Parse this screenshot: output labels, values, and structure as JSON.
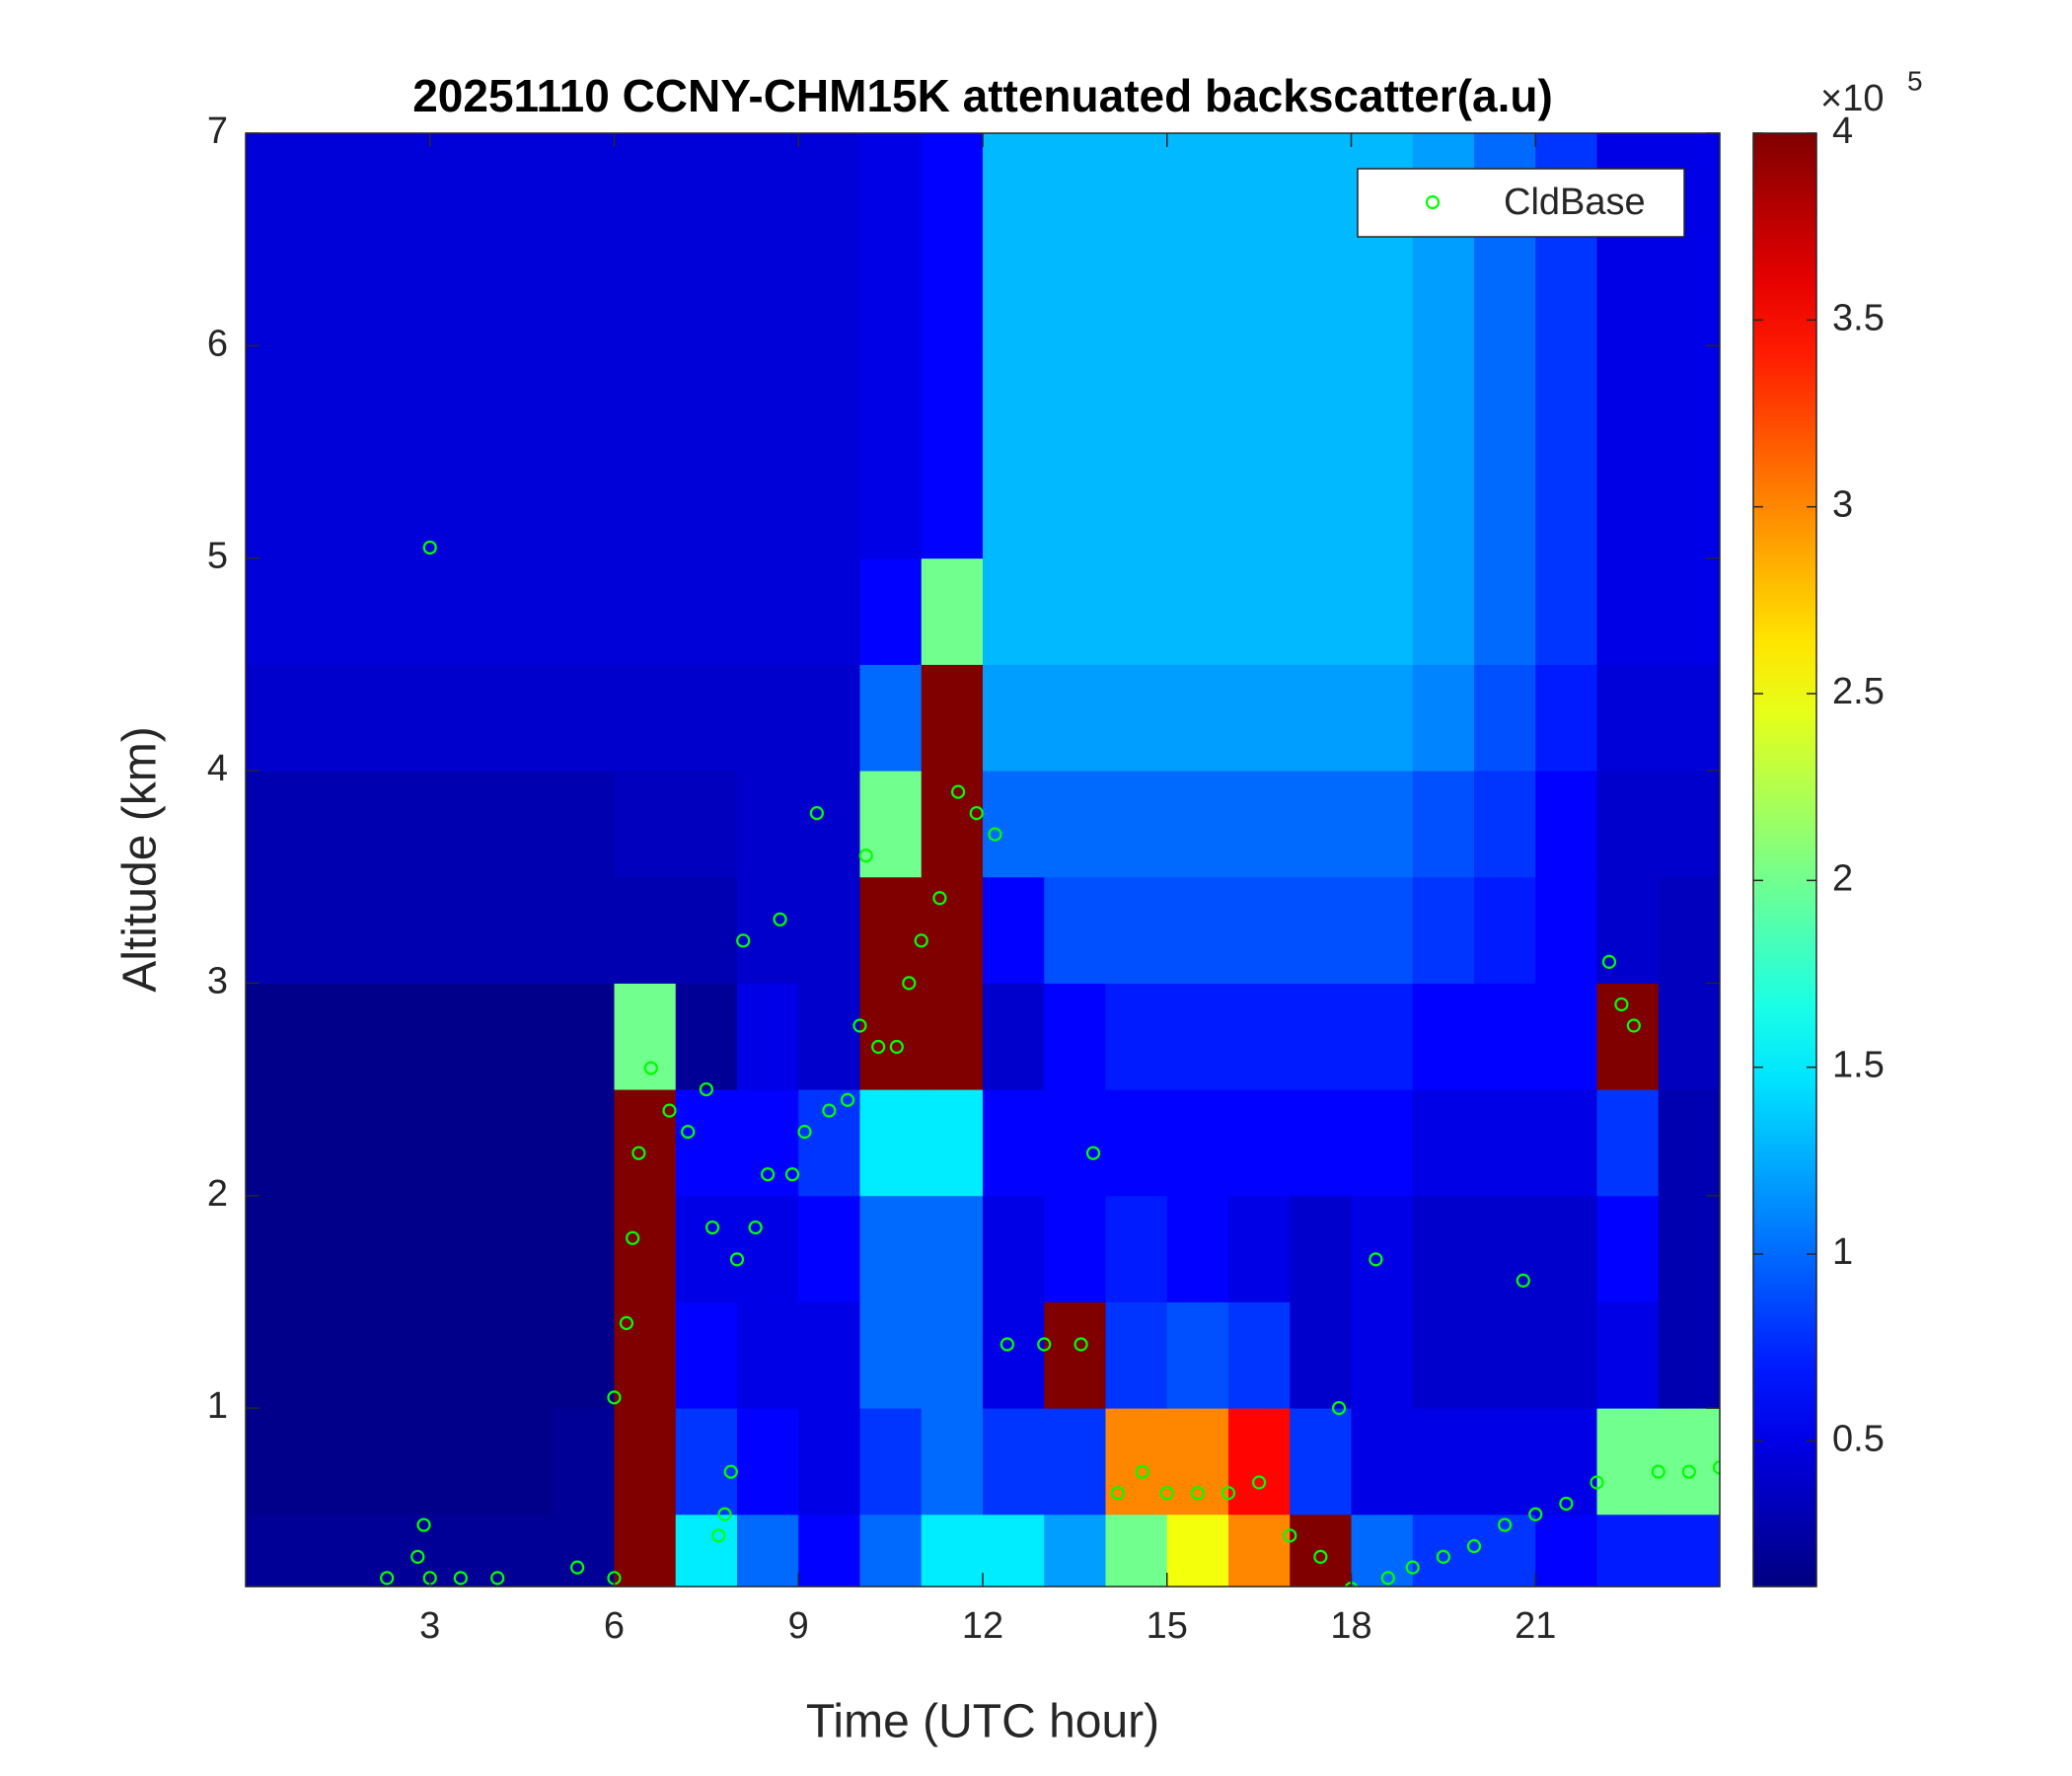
{
  "chart_data": {
    "type": "heatmap",
    "title": "20251110 CCNY-CHM15K attenuated backscatter(a.u)",
    "xlabel": "Time (UTC hour)",
    "ylabel": "Altitude (km)",
    "xlim": [
      0,
      24
    ],
    "ylim": [
      0.16,
      7
    ],
    "xticks": [
      3,
      6,
      9,
      12,
      15,
      18,
      21
    ],
    "yticks": [
      1,
      2,
      3,
      4,
      5,
      6,
      7
    ],
    "colormap": "jet",
    "clim": [
      0.11,
      4
    ],
    "cticks": [
      0.5,
      1,
      1.5,
      2,
      2.5,
      3,
      3.5,
      4
    ],
    "colorbar_label": "×10",
    "colorbar_exponent": "5",
    "legend_position": "upper right",
    "xbins": [
      0,
      1,
      2,
      3,
      4,
      5,
      6,
      7,
      8,
      9,
      10,
      11,
      12,
      13,
      14,
      15,
      16,
      17,
      18,
      19,
      20,
      21,
      22,
      23,
      24
    ],
    "ybins": [
      0,
      0.5,
      1,
      1.5,
      2,
      2.5,
      3,
      3.5,
      4,
      4.5,
      5,
      5.5,
      6,
      6.5,
      7
    ],
    "z": [
      [
        0.2,
        0.2,
        0.2,
        0.2,
        0.2,
        0.2,
        4,
        1.5,
        1,
        0.6,
        1,
        1.5,
        1.5,
        1.2,
        2,
        2.5,
        3,
        4,
        1,
        0.8,
        0.8,
        0.6,
        0.7,
        0.7
      ],
      [
        0.15,
        0.15,
        0.15,
        0.15,
        0.15,
        0.2,
        4,
        0.8,
        0.6,
        0.5,
        0.8,
        1,
        0.8,
        0.8,
        3,
        3,
        3.5,
        0.8,
        0.5,
        0.5,
        0.5,
        0.5,
        2,
        2
      ],
      [
        0.15,
        0.15,
        0.15,
        0.15,
        0.15,
        0.15,
        4,
        0.6,
        0.5,
        0.5,
        1,
        1,
        0.5,
        4,
        0.8,
        0.9,
        0.8,
        0.4,
        0.5,
        0.4,
        0.4,
        0.4,
        0.5,
        0.3
      ],
      [
        0.15,
        0.15,
        0.15,
        0.15,
        0.15,
        0.15,
        4,
        0.5,
        0.5,
        0.6,
        1,
        1,
        0.5,
        0.6,
        0.7,
        0.6,
        0.5,
        0.4,
        0.5,
        0.4,
        0.4,
        0.4,
        0.6,
        0.3
      ],
      [
        0.15,
        0.15,
        0.15,
        0.15,
        0.15,
        0.15,
        4,
        0.6,
        0.6,
        0.8,
        1.5,
        1.5,
        0.6,
        0.6,
        0.6,
        0.6,
        0.6,
        0.6,
        0.6,
        0.5,
        0.5,
        0.5,
        0.8,
        0.3
      ],
      [
        0.15,
        0.15,
        0.15,
        0.15,
        0.15,
        0.15,
        2,
        0.2,
        0.5,
        0.4,
        4,
        4,
        0.4,
        0.6,
        0.7,
        0.7,
        0.7,
        0.7,
        0.7,
        0.6,
        0.6,
        0.6,
        4,
        0.35
      ],
      [
        0.3,
        0.3,
        0.3,
        0.3,
        0.3,
        0.3,
        0.3,
        0.3,
        0.4,
        0.4,
        4,
        4,
        0.6,
        0.9,
        0.9,
        0.9,
        0.9,
        0.9,
        0.9,
        0.8,
        0.7,
        0.6,
        0.4,
        0.35
      ],
      [
        0.3,
        0.3,
        0.3,
        0.3,
        0.3,
        0.3,
        0.35,
        0.35,
        0.4,
        0.4,
        2,
        4,
        1,
        1,
        1,
        1,
        1,
        1,
        1,
        0.9,
        0.8,
        0.6,
        0.4,
        0.4
      ],
      [
        0.4,
        0.4,
        0.4,
        0.4,
        0.4,
        0.4,
        0.4,
        0.4,
        0.4,
        0.4,
        1,
        4,
        1.2,
        1.2,
        1.2,
        1.2,
        1.2,
        1.2,
        1.2,
        1.1,
        0.9,
        0.7,
        0.45,
        0.45
      ],
      [
        0.45,
        0.45,
        0.45,
        0.45,
        0.45,
        0.45,
        0.45,
        0.45,
        0.45,
        0.45,
        0.6,
        2,
        1.3,
        1.3,
        1.3,
        1.3,
        1.3,
        1.3,
        1.3,
        1.2,
        1,
        0.8,
        0.5,
        0.5
      ],
      [
        0.45,
        0.45,
        0.45,
        0.45,
        0.45,
        0.45,
        0.45,
        0.45,
        0.45,
        0.45,
        0.5,
        0.6,
        1.3,
        1.3,
        1.3,
        1.3,
        1.3,
        1.3,
        1.3,
        1.2,
        1,
        0.8,
        0.5,
        0.5
      ],
      [
        0.45,
        0.45,
        0.45,
        0.45,
        0.45,
        0.45,
        0.45,
        0.45,
        0.45,
        0.45,
        0.5,
        0.6,
        1.3,
        1.3,
        1.3,
        1.3,
        1.3,
        1.3,
        1.3,
        1.2,
        1,
        0.8,
        0.5,
        0.5
      ],
      [
        0.45,
        0.45,
        0.45,
        0.45,
        0.45,
        0.45,
        0.45,
        0.45,
        0.45,
        0.45,
        0.5,
        0.6,
        1.3,
        1.3,
        1.3,
        1.3,
        1.3,
        1.3,
        1.3,
        1.2,
        1,
        0.8,
        0.5,
        0.5
      ],
      [
        0.45,
        0.45,
        0.45,
        0.45,
        0.45,
        0.45,
        0.45,
        0.45,
        0.45,
        0.45,
        0.5,
        0.6,
        1.3,
        1.3,
        1.3,
        1.3,
        1.3,
        1.3,
        1.3,
        1.2,
        1,
        0.8,
        0.5,
        0.5
      ]
    ],
    "series": [
      {
        "name": "CldBase",
        "type": "scatter",
        "color": "#00ff00",
        "x": [
          2.3,
          2.8,
          2.9,
          3,
          3,
          3.5,
          4.1,
          5.4,
          6,
          6,
          6.2,
          6.3,
          6.4,
          6.6,
          6.9,
          7.2,
          7.5,
          7.6,
          7.7,
          7.8,
          7.9,
          8,
          8.1,
          8.3,
          8.5,
          8.7,
          8.9,
          9.1,
          9.3,
          9.5,
          9.8,
          10,
          10.1,
          10.3,
          10.6,
          10.8,
          11,
          11.3,
          11.6,
          11.9,
          12.2,
          12.4,
          13,
          13.6,
          13.8,
          14.2,
          14.6,
          15,
          15.5,
          16,
          16.5,
          17,
          17.5,
          17.8,
          18,
          18.4,
          18.6,
          19,
          19.5,
          20,
          20.5,
          20.8,
          21,
          21.5,
          22,
          22.2,
          22.4,
          22.6,
          23,
          23.5,
          24
        ],
        "values": [
          0.2,
          0.3,
          0.45,
          0.2,
          5.05,
          0.2,
          0.2,
          0.25,
          0.2,
          1.05,
          1.4,
          1.8,
          2.2,
          2.6,
          2.4,
          2.3,
          2.5,
          1.85,
          0.4,
          0.5,
          0.7,
          1.7,
          3.2,
          1.85,
          2.1,
          3.3,
          2.1,
          2.3,
          3.8,
          2.4,
          2.45,
          2.8,
          3.6,
          2.7,
          2.7,
          3,
          3.2,
          3.4,
          3.9,
          3.8,
          3.7,
          1.3,
          1.3,
          1.3,
          2.2,
          0.6,
          0.7,
          0.6,
          0.6,
          0.6,
          0.65,
          0.4,
          0.3,
          1,
          0.15,
          1.7,
          0.2,
          0.25,
          0.3,
          0.35,
          0.45,
          1.6,
          0.5,
          0.55,
          0.65,
          3.1,
          2.9,
          2.8,
          0.7,
          0.7,
          0.72
        ]
      }
    ]
  }
}
